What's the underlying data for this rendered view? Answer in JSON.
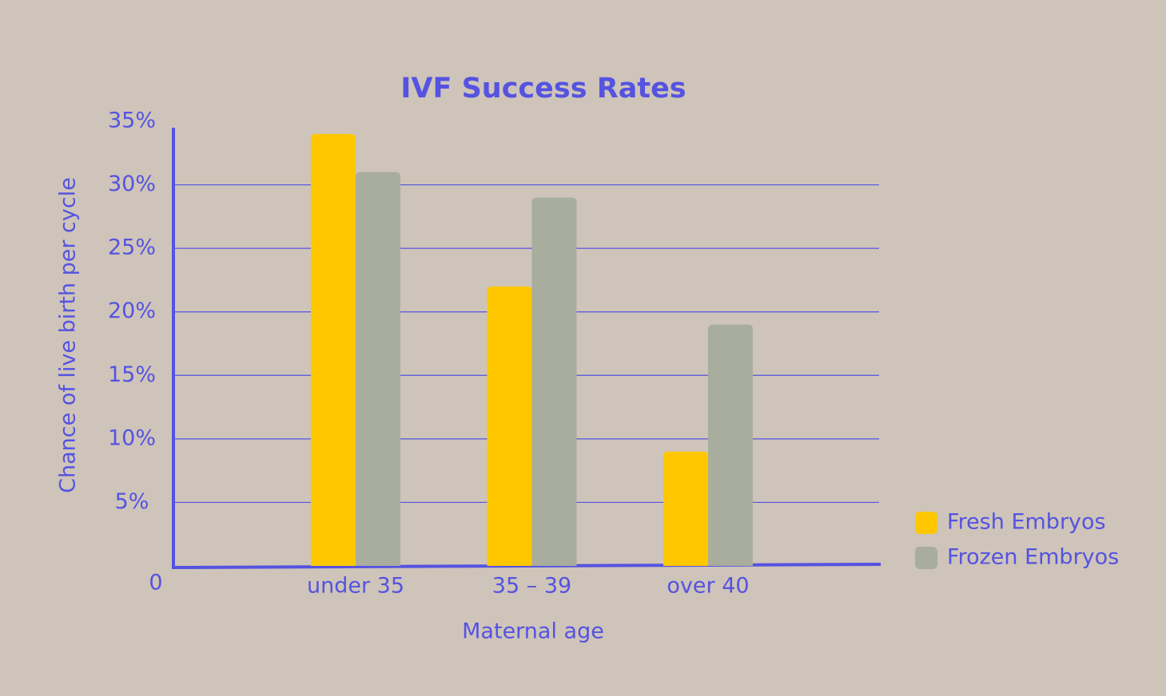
{
  "chart_data": {
    "type": "bar",
    "title": "IVF Success Rates",
    "x_label": "Maternal age",
    "y_label": "Chance of live birth per cycle",
    "categories": [
      "under 35",
      "35 – 39",
      "over 40"
    ],
    "series": [
      {
        "name": "Fresh Embryos",
        "color": "#ffc700",
        "values": [
          34,
          22,
          9
        ]
      },
      {
        "name": "Frozen Embryos",
        "color": "#a8ad9d",
        "values": [
          31,
          29,
          19
        ]
      }
    ],
    "ylim": [
      0,
      35
    ],
    "yticks": [
      0,
      {
        "value": 5,
        "label": "5%"
      },
      {
        "value": 10,
        "label": "10%"
      },
      {
        "value": 15,
        "label": "15%"
      },
      {
        "value": 20,
        "label": "20%"
      },
      {
        "value": 25,
        "label": "25%"
      },
      {
        "value": 30,
        "label": "30%"
      },
      {
        "value": 35,
        "label": "35%"
      }
    ],
    "grid": true,
    "legend": "right"
  }
}
